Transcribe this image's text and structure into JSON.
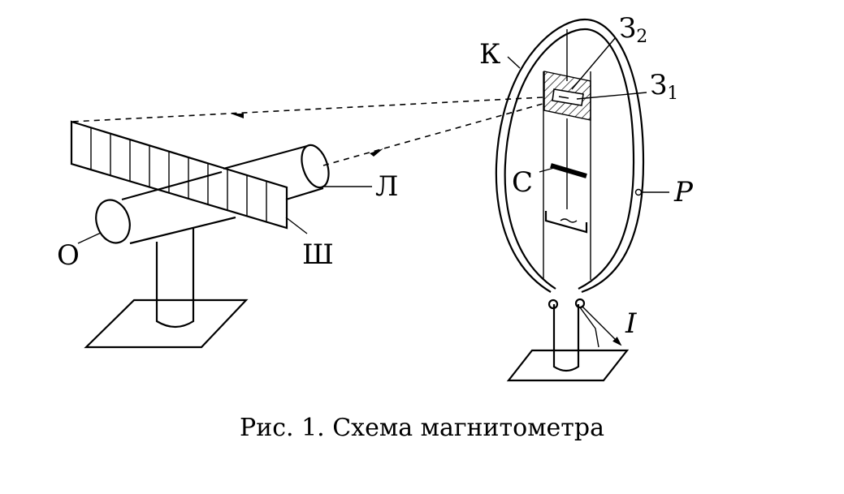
{
  "labels": {
    "objective": "О",
    "lamp": "Л",
    "scale": "Ш",
    "frame": "К",
    "mirror2": "З",
    "mirror2_sub": "2",
    "mirror1": "З",
    "mirror1_sub": "1",
    "magnet": "С",
    "ring": "P",
    "current": "I"
  },
  "caption": "Рис. 1. Схема магнитометра"
}
